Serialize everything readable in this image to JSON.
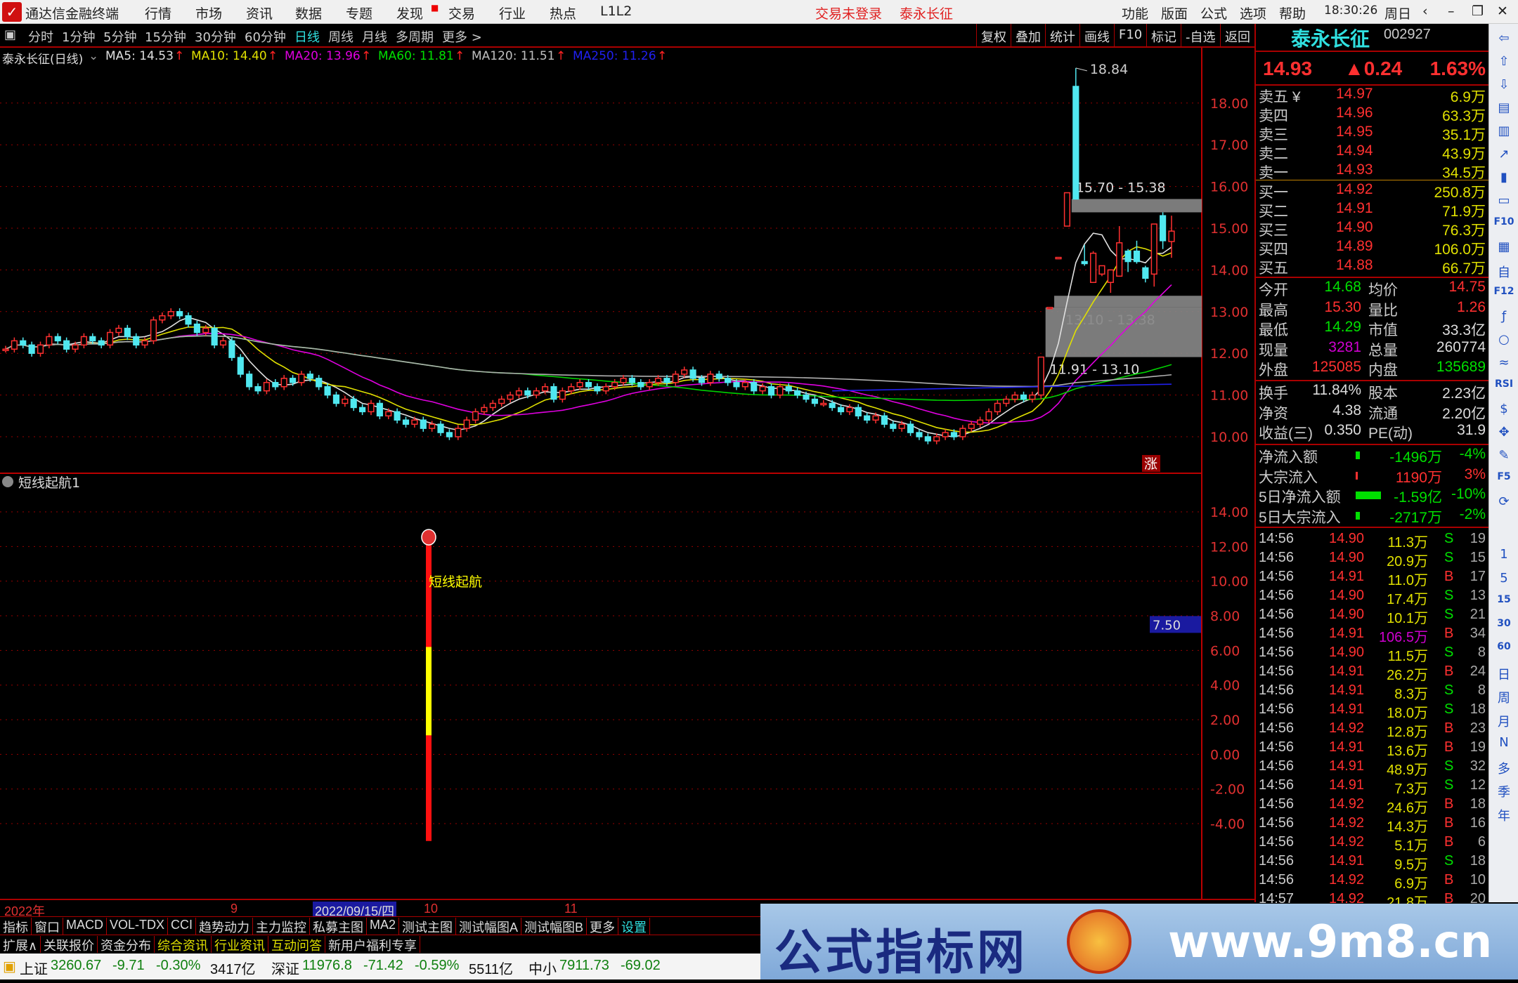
{
  "titlebar": {
    "app": "通达信金融终端",
    "menus": [
      "行情",
      "市场",
      "资讯",
      "数据",
      "专题",
      "发现",
      "交易",
      "行业",
      "热点",
      "L1L2"
    ],
    "login": "交易未登录",
    "stock": "泰永长征",
    "right_menus": [
      "功能",
      "版面",
      "公式",
      "选项",
      "帮助"
    ],
    "time": "18:30:26",
    "weekday": "周日"
  },
  "periods": [
    "分时",
    "1分钟",
    "5分钟",
    "15分钟",
    "30分钟",
    "60分钟",
    "日线",
    "周线",
    "月线",
    "多周期",
    "更多 >"
  ],
  "active_period": "日线",
  "toolbar": [
    "复权",
    "叠加",
    "统计",
    "画线",
    "F10",
    "标记",
    "-自选",
    "返回"
  ],
  "legend": {
    "title": "泰永长征(日线)",
    "items": [
      {
        "t": "MA5: 14.53",
        "c": "#e0e0e0"
      },
      {
        "t": "MA10: 14.40",
        "c": "#e0e000"
      },
      {
        "t": "MA20: 13.96",
        "c": "#e000e0"
      },
      {
        "t": "MA60: 11.81",
        "c": "#00e000"
      },
      {
        "t": "MA120: 11.51",
        "c": "#c0c0c0"
      },
      {
        "t": "MA250: 11.26",
        "c": "#2020f0"
      }
    ]
  },
  "chart_data": {
    "type": "candlestick",
    "price_axis": [
      "18.00",
      "17.00",
      "16.00",
      "15.00",
      "14.00",
      "13.00",
      "12.00",
      "11.00",
      "10.00"
    ],
    "closes": [
      12.1,
      12.3,
      12.2,
      12.0,
      12.2,
      12.4,
      12.3,
      12.1,
      12.2,
      12.4,
      12.3,
      12.2,
      12.5,
      12.6,
      12.4,
      12.2,
      12.3,
      12.8,
      12.9,
      13.0,
      12.9,
      12.7,
      12.5,
      12.6,
      12.2,
      12.3,
      11.9,
      11.5,
      11.2,
      11.1,
      11.3,
      11.2,
      11.4,
      11.3,
      11.5,
      11.4,
      11.2,
      11.0,
      10.8,
      10.9,
      10.7,
      10.6,
      10.8,
      10.5,
      10.6,
      10.4,
      10.3,
      10.4,
      10.2,
      10.3,
      10.1,
      10.0,
      10.2,
      10.4,
      10.6,
      10.7,
      10.8,
      10.9,
      11.0,
      11.1,
      11.0,
      11.1,
      11.2,
      10.9,
      11.1,
      11.2,
      11.3,
      11.2,
      11.1,
      11.2,
      11.3,
      11.4,
      11.3,
      11.2,
      11.3,
      11.4,
      11.3,
      11.5,
      11.6,
      11.4,
      11.3,
      11.5,
      11.4,
      11.3,
      11.2,
      11.3,
      11.1,
      11.2,
      11.0,
      11.2,
      11.1,
      11.0,
      10.9,
      10.8,
      10.8,
      10.7,
      10.6,
      10.7,
      10.5,
      10.4,
      10.5,
      10.3,
      10.2,
      10.3,
      10.1,
      10.0,
      9.9,
      10.0,
      10.1,
      10.0,
      10.2,
      10.3,
      10.4,
      10.6,
      10.8,
      10.9,
      11.0,
      10.9,
      11.0
    ],
    "recent_ohlc": [
      [
        11.0,
        11.91,
        10.9,
        11.91
      ],
      [
        13.1,
        13.1,
        13.1,
        13.1
      ],
      [
        14.3,
        14.3,
        14.3,
        14.3
      ],
      [
        15.05,
        15.85,
        15.05,
        15.85
      ],
      [
        18.4,
        18.84,
        15.7,
        15.7
      ],
      [
        14.2,
        14.6,
        14.1,
        14.15
      ],
      [
        13.7,
        14.45,
        13.7,
        14.4
      ],
      [
        13.9,
        14.1,
        13.85,
        14.1
      ],
      [
        13.7,
        14.0,
        13.45,
        14.0
      ],
      [
        13.85,
        15.05,
        13.85,
        14.65
      ],
      [
        14.45,
        14.5,
        13.95,
        14.2
      ],
      [
        14.45,
        14.7,
        14.15,
        14.2
      ],
      [
        14.05,
        14.1,
        13.7,
        13.8
      ],
      [
        13.9,
        15.1,
        13.6,
        15.1
      ],
      [
        15.3,
        15.38,
        14.5,
        14.7
      ],
      [
        14.68,
        15.3,
        14.29,
        14.93
      ]
    ],
    "high_label": "18.84",
    "zones": [
      {
        "label": "15.70 - 15.38",
        "lo": 15.38,
        "hi": 15.7
      },
      {
        "label": "13.10 - 13.38",
        "lo": 13.1,
        "hi": 13.38
      },
      {
        "label": "11.91 - 13.10",
        "lo": 11.91,
        "hi": 13.1
      }
    ],
    "badge": "涨",
    "indicator": {
      "name": "短线起航1",
      "axis": [
        "14.00",
        "12.00",
        "10.00",
        "8.00",
        "6.00",
        "4.00",
        "2.00",
        "0.00",
        "-2.00",
        "-4.00"
      ],
      "current": "7.50",
      "signal_label": "短线起航",
      "bar_top": 12.7,
      "yellow_top": 6.2,
      "yellow_bottom": 1.1,
      "bar_bottom": -5.0
    }
  },
  "dateaxis": {
    "year": "2022年",
    "m9": "9",
    "cursor": "2022/09/15/四",
    "m10": "10",
    "m11": "11"
  },
  "tabs1": [
    "指标",
    "窗口",
    "MACD",
    "VOL-TDX",
    "CCI",
    "趋势动力",
    "主力监控",
    "私募主图",
    "MA2",
    "测试主图",
    "测试幅图A",
    "测试幅图B",
    "更多",
    "设置"
  ],
  "tabs2": [
    "扩展∧",
    "关联报价",
    "资金分布",
    "综合资讯",
    "行业资讯",
    "互动问答",
    "新用户福利专享"
  ],
  "quote": {
    "name": "泰永长征",
    "code": "002927",
    "price": "14.93",
    "change": "▲0.24",
    "pct": "1.63%",
    "asks": [
      [
        "卖五 ¥",
        "14.97",
        "6.9万"
      ],
      [
        "卖四",
        "14.96",
        "63.3万"
      ],
      [
        "卖三",
        "14.95",
        "35.1万"
      ],
      [
        "卖二",
        "14.94",
        "43.9万"
      ],
      [
        "卖一",
        "14.93",
        "34.5万"
      ]
    ],
    "bids": [
      [
        "买一",
        "14.92",
        "250.8万"
      ],
      [
        "买二",
        "14.91",
        "71.9万"
      ],
      [
        "买三",
        "14.90",
        "76.3万"
      ],
      [
        "买四",
        "14.89",
        "106.0万"
      ],
      [
        "买五",
        "14.88",
        "66.7万"
      ]
    ],
    "stats": [
      [
        "今开",
        "14.68",
        "#00e000",
        "均价",
        "14.75",
        "#ff3030"
      ],
      [
        "最高",
        "15.30",
        "#ff3030",
        "量比",
        "1.26",
        "#ff3030"
      ],
      [
        "最低",
        "14.29",
        "#00e000",
        "市值",
        "33.3亿",
        "#ddd"
      ],
      [
        "现量",
        "3281",
        "#d000d0",
        "总量",
        "260774",
        "#ddd"
      ],
      [
        "外盘",
        "125085",
        "#ff3030",
        "内盘",
        "135689",
        "#00e000"
      ]
    ],
    "stats2": [
      [
        "换手",
        "11.84%",
        "股本",
        "2.23亿"
      ],
      [
        "净资",
        "4.38",
        "流通",
        "2.20亿"
      ],
      [
        "收益(三)",
        "0.350",
        "PE(动)",
        "31.9"
      ]
    ],
    "flows": [
      [
        "净流入额",
        "-1496万",
        "-4%",
        "#00e000",
        6
      ],
      [
        "大宗流入",
        "1190万",
        "3%",
        "#ff3030",
        3
      ],
      [
        "5日净流入额",
        "-1.59亿",
        "-10%",
        "#00e000",
        36
      ],
      [
        "5日大宗流入",
        "-2717万",
        "-2%",
        "#00e000",
        6
      ]
    ],
    "ticks": [
      [
        "14:56",
        "14.90",
        "11.3万",
        "S",
        "19"
      ],
      [
        "14:56",
        "14.90",
        "20.9万",
        "S",
        "15"
      ],
      [
        "14:56",
        "14.91",
        "11.0万",
        "B",
        "17"
      ],
      [
        "14:56",
        "14.90",
        "17.4万",
        "S",
        "13"
      ],
      [
        "14:56",
        "14.90",
        "10.1万",
        "S",
        "21"
      ],
      [
        "14:56",
        "14.91",
        "106.5万",
        "B",
        "34"
      ],
      [
        "14:56",
        "14.90",
        "11.5万",
        "S",
        "8"
      ],
      [
        "14:56",
        "14.91",
        "26.2万",
        "B",
        "24"
      ],
      [
        "14:56",
        "14.91",
        "8.3万",
        "S",
        "8"
      ],
      [
        "14:56",
        "14.91",
        "18.0万",
        "S",
        "18"
      ],
      [
        "14:56",
        "14.92",
        "12.8万",
        "B",
        "23"
      ],
      [
        "14:56",
        "14.91",
        "13.6万",
        "B",
        "19"
      ],
      [
        "14:56",
        "14.91",
        "48.9万",
        "S",
        "32"
      ],
      [
        "14:56",
        "14.91",
        "7.3万",
        "S",
        "12"
      ],
      [
        "14:56",
        "14.92",
        "24.6万",
        "B",
        "18"
      ],
      [
        "14:56",
        "14.92",
        "14.3万",
        "B",
        "16"
      ],
      [
        "14:56",
        "14.92",
        "5.1万",
        "B",
        "6"
      ],
      [
        "14:56",
        "14.91",
        "9.5万",
        "S",
        "18"
      ],
      [
        "14:56",
        "14.92",
        "6.9万",
        "B",
        "10"
      ],
      [
        "14:57",
        "14.92",
        "21.8万",
        "B",
        "20"
      ]
    ]
  },
  "side_icons": [
    "⇦",
    "⇧",
    "⇩",
    "▤",
    "▥",
    "↗",
    "▮",
    "▭",
    "F10",
    "▦",
    "自",
    "F12",
    "ƒ",
    "○",
    "≈",
    "RSI",
    "$",
    "✥",
    "✎",
    "F5",
    "⟳",
    "1",
    "5",
    "15",
    "30",
    "60",
    "日",
    "周",
    "月",
    "N",
    "多",
    "季",
    "年"
  ],
  "status": {
    "sh_label": "上证",
    "sh": "3260.67",
    "sh_chg": "-9.71",
    "sh_pct": "-0.30%",
    "sh_amt": "3417亿",
    "sz_label": "深证",
    "sz": "11976.8",
    "sz_chg": "-71.42",
    "sz_pct": "-0.59%",
    "sz_amt": "5511亿",
    "zx_label": "中小",
    "zx": "7911.73",
    "zx_chg": "-69.02"
  },
  "watermark": {
    "text": "公式指标网",
    "url": "www.9m8.cn"
  }
}
